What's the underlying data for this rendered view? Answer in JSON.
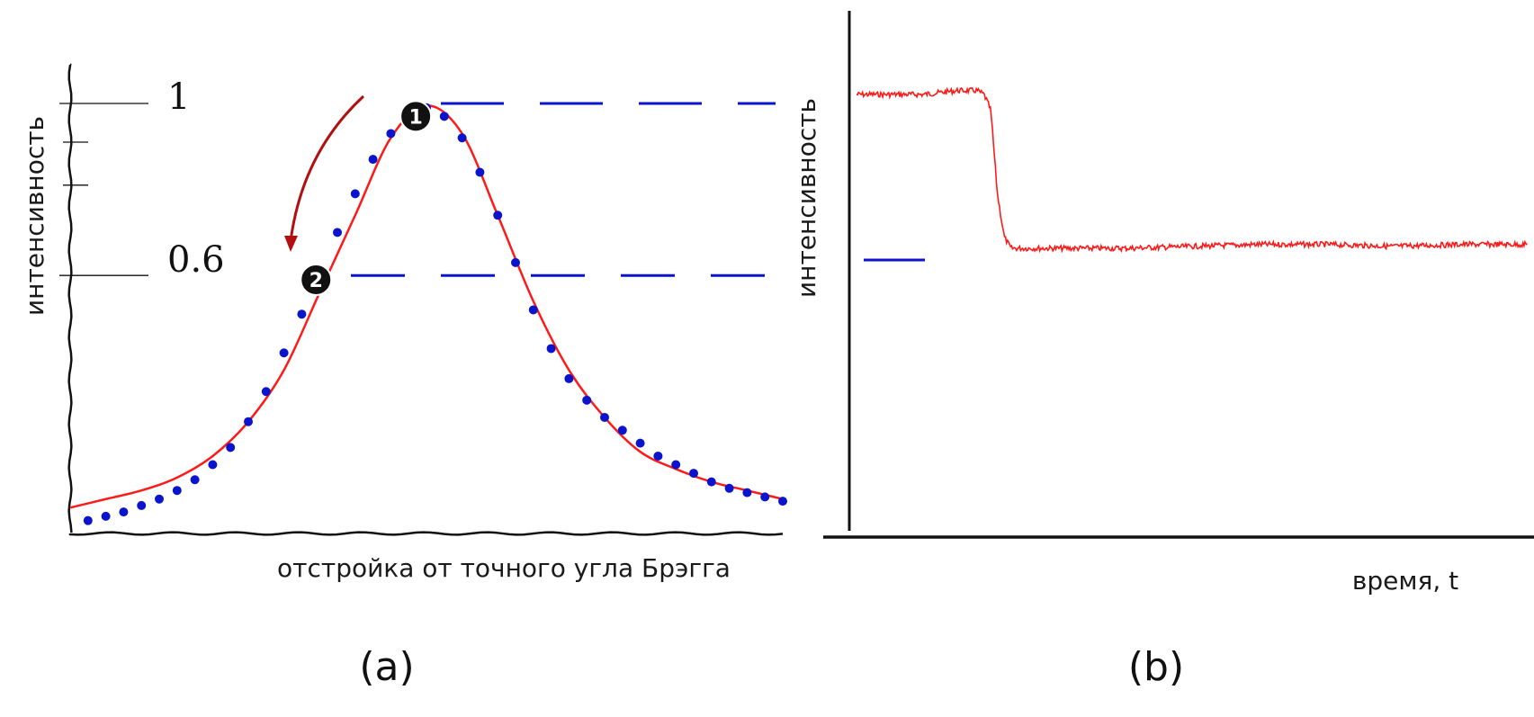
{
  "colors": {
    "curve": "#ff1a1a",
    "dots": "#0a14cc",
    "dash": "#0a14cc",
    "arrow": "#b01010",
    "axis": "#111111",
    "marker": "#111111"
  },
  "chart_data": [
    {
      "type": "line",
      "panel_label": "(a)",
      "xlabel": "отстройка от точного угла Брэгга",
      "ylabel": "интенсивность",
      "x_range": [
        0,
        20
      ],
      "ylim": [
        0,
        1.05
      ],
      "y_ticks": [
        {
          "value": 1.0,
          "label": "1"
        },
        {
          "value": 0.6,
          "label": "0.6"
        }
      ],
      "y_minor_ticks": [
        0.91,
        0.81
      ],
      "series": [
        {
          "style": "solid-red",
          "x": [
            0,
            1,
            2,
            3,
            4,
            5,
            6,
            7,
            8,
            9,
            10,
            11,
            12,
            13,
            14,
            15,
            16,
            17,
            18,
            19,
            20
          ],
          "y": [
            0.06,
            0.08,
            0.1,
            0.13,
            0.18,
            0.26,
            0.38,
            0.56,
            0.74,
            0.92,
            0.995,
            0.93,
            0.74,
            0.54,
            0.38,
            0.27,
            0.19,
            0.15,
            0.12,
            0.1,
            0.08
          ]
        },
        {
          "style": "blue-dots",
          "x": [
            0.5,
            1,
            1.5,
            2,
            2.5,
            3,
            3.5,
            4,
            4.5,
            5,
            5.5,
            6,
            6.5,
            7,
            7.5,
            8,
            8.5,
            9,
            9.5,
            10,
            10.5,
            11,
            11.5,
            12,
            12.5,
            13,
            13.5,
            14,
            14.5,
            15,
            15.5,
            16,
            16.5,
            17,
            17.5,
            18,
            18.5,
            19,
            19.5,
            20
          ],
          "y": [
            0.03,
            0.04,
            0.05,
            0.065,
            0.08,
            0.1,
            0.125,
            0.16,
            0.2,
            0.26,
            0.33,
            0.42,
            0.51,
            0.61,
            0.7,
            0.79,
            0.87,
            0.93,
            0.97,
            0.99,
            0.97,
            0.92,
            0.84,
            0.74,
            0.63,
            0.52,
            0.43,
            0.36,
            0.31,
            0.27,
            0.24,
            0.21,
            0.18,
            0.16,
            0.14,
            0.12,
            0.105,
            0.095,
            0.085,
            0.075
          ]
        }
      ],
      "markers": [
        {
          "label": "1",
          "x": 9.7,
          "y": 0.97
        },
        {
          "label": "2",
          "x": 6.9,
          "y": 0.59
        }
      ]
    },
    {
      "type": "line",
      "panel_label": "(b)",
      "xlabel": "время, t",
      "ylabel": "интенсивность",
      "x_range": [
        0,
        100
      ],
      "ylim": [
        0,
        1.1
      ],
      "series": [
        {
          "style": "solid-red-noisy",
          "x": [
            0,
            5,
            10,
            15,
            18,
            19,
            20,
            21,
            22,
            23,
            25,
            30,
            40,
            50,
            60,
            70,
            80,
            90,
            100
          ],
          "y": [
            1.0,
            1.0,
            1.0,
            1.01,
            1.01,
            1.0,
            0.96,
            0.74,
            0.63,
            0.6,
            0.6,
            0.6,
            0.6,
            0.605,
            0.61,
            0.61,
            0.605,
            0.61,
            0.61
          ]
        }
      ]
    }
  ]
}
